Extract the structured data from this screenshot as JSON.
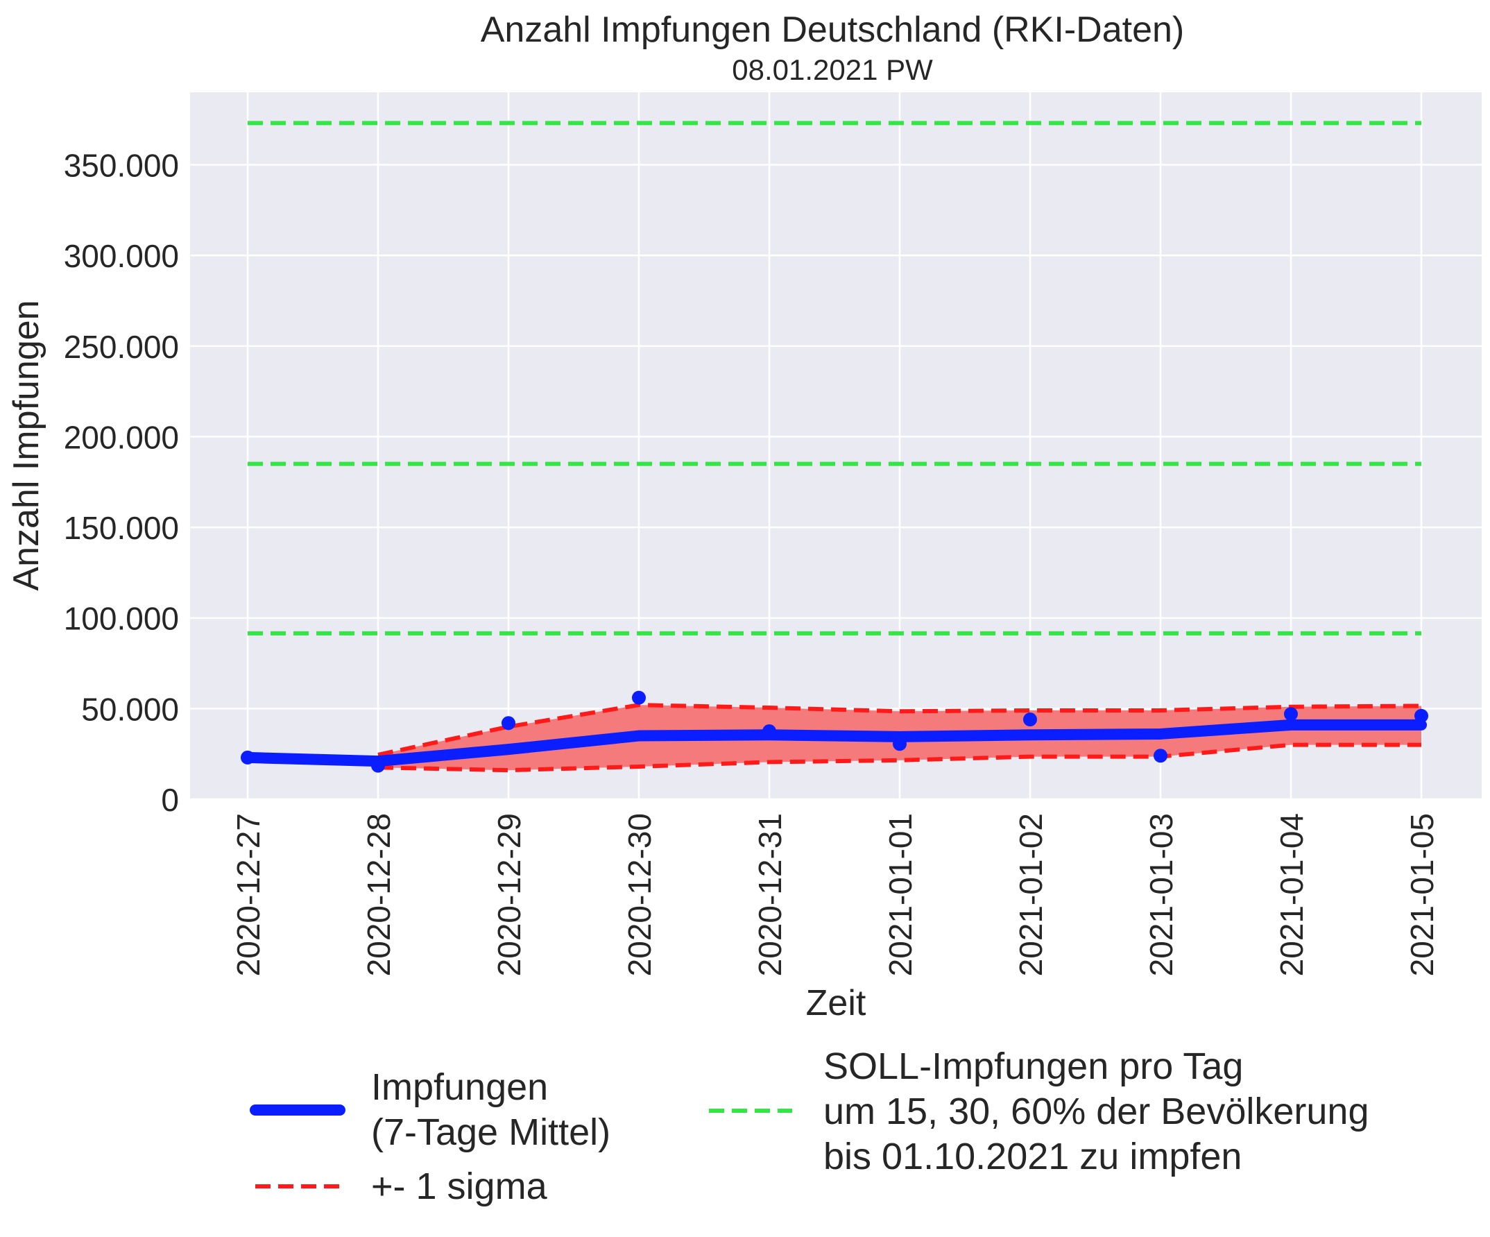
{
  "chart_data": {
    "type": "line",
    "title": "Anzahl Impfungen Deutschland (RKI-Daten)",
    "subtitle": "08.01.2021 PW",
    "xlabel": "Zeit",
    "ylabel": "Anzahl Impfungen",
    "ylim": [
      0,
      390000
    ],
    "yticks": [
      0,
      50000,
      100000,
      150000,
      200000,
      250000,
      300000,
      350000
    ],
    "ytick_labels": [
      "0",
      "50.000",
      "100.000",
      "150.000",
      "200.000",
      "250.000",
      "300.000",
      "350.000"
    ],
    "grid": true,
    "legend_position": "bottom",
    "categories": [
      "2020-12-27",
      "2020-12-28",
      "2020-12-29",
      "2020-12-30",
      "2020-12-31",
      "2021-01-01",
      "2021-01-02",
      "2021-01-03",
      "2021-01-04",
      "2021-01-05"
    ],
    "series": [
      {
        "name": "Impfungen\n(7-Tage Mittel)",
        "style": "line",
        "color": "#0a1eff",
        "values": [
          23000,
          21000,
          27500,
          35000,
          35500,
          34500,
          35500,
          36000,
          41000,
          41000
        ]
      },
      {
        "name": "daily",
        "style": "points",
        "color": "#0a1eff",
        "values": [
          23000,
          18500,
          42000,
          56000,
          37500,
          30500,
          44000,
          24000,
          47000,
          46000
        ]
      },
      {
        "name": "+- 1 sigma",
        "style": "band",
        "color": "#ff1a1a",
        "fill": "#f47a7c",
        "upper": [
          null,
          24500,
          40000,
          52000,
          50500,
          48500,
          49000,
          49000,
          51000,
          51500
        ],
        "lower": [
          null,
          17500,
          16000,
          18000,
          20500,
          21500,
          23500,
          23500,
          30000,
          30000
        ]
      }
    ],
    "soll_lines": {
      "name": "SOLL-Impfungen pro Tag\num 15, 30, 60% der Bevölkerung\nbis 01.10.2021 zu impfen",
      "color": "#33e645",
      "values": [
        91500,
        185000,
        373000
      ]
    }
  }
}
